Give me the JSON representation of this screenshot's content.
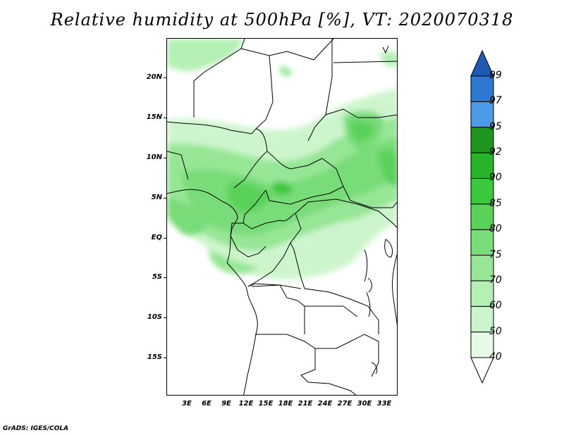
{
  "title": "Relative humidity at 500hPa [%], VT: 2020070318",
  "credit": "GrADS: IGES/COLA",
  "map": {
    "lat_labels": [
      "20N",
      "15N",
      "10N",
      "5N",
      "EQ",
      "5S",
      "10S",
      "15S"
    ],
    "lon_labels": [
      "3E",
      "6E",
      "9E",
      "12E",
      "15E",
      "18E",
      "21E",
      "24E",
      "27E",
      "30E",
      "33E"
    ]
  },
  "colorbar": {
    "labels": [
      "40",
      "50",
      "60",
      "70",
      "75",
      "80",
      "85",
      "90",
      "92",
      "95",
      "97",
      "99"
    ],
    "colors": [
      "#ffffff",
      "#e6fae6",
      "#cdf5cd",
      "#b4f0b4",
      "#96e696",
      "#78dc78",
      "#5ad25a",
      "#3cc83c",
      "#28b428",
      "#1e961e",
      "#4b9be6",
      "#2d78d2",
      "#1e5ab4"
    ]
  }
}
